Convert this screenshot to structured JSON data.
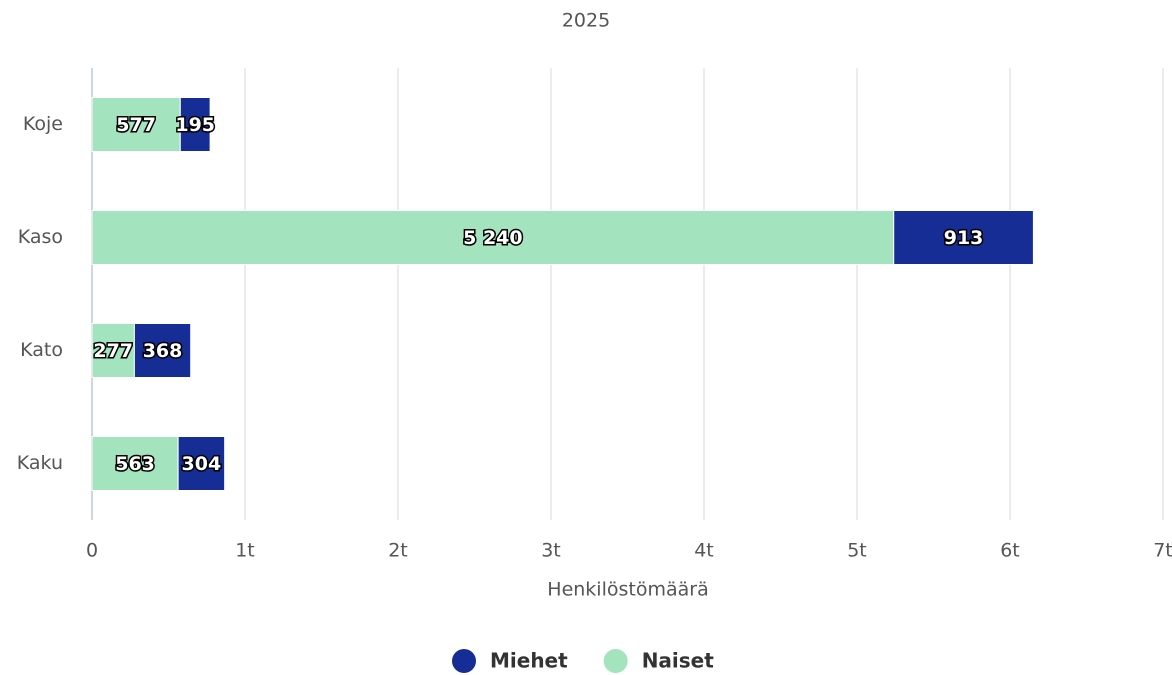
{
  "chart_data": {
    "type": "bar",
    "orientation": "horizontal",
    "stacked": true,
    "title": "2025",
    "categories": [
      "Koje",
      "Kaso",
      "Kato",
      "Kaku"
    ],
    "series": [
      {
        "name": "Miehet",
        "color": "#152d95",
        "values": [
          195,
          913,
          368,
          304
        ]
      },
      {
        "name": "Naiset",
        "color": "#a3e3bd",
        "values": [
          577,
          5240,
          277,
          563
        ],
        "value_labels": [
          "577",
          "5 240",
          "277",
          "563"
        ]
      }
    ],
    "xlabel": "Henkilöstömäärä",
    "xlim": [
      0,
      7000
    ],
    "xticks": [
      0,
      {
        "value": 1000,
        "label": "1t"
      },
      {
        "value": 2000,
        "label": "2t"
      },
      {
        "value": 3000,
        "label": "3t"
      },
      {
        "value": 4000,
        "label": "4t"
      },
      {
        "value": 5000,
        "label": "5t"
      },
      {
        "value": 6000,
        "label": "6t"
      },
      {
        "value": 7000,
        "label": "7t"
      }
    ],
    "grid": true,
    "legend": "bottom"
  }
}
